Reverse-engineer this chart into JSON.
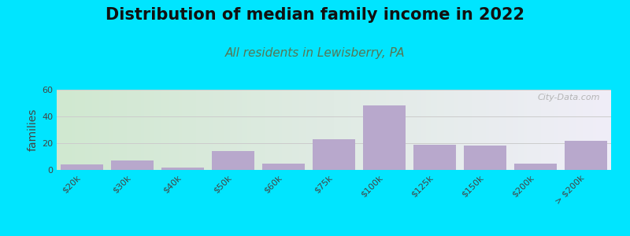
{
  "title": "Distribution of median family income in 2022",
  "subtitle": "All residents in Lewisberry, PA",
  "ylabel": "families",
  "categories": [
    "$20k",
    "$30k",
    "$40k",
    "$50k",
    "$60k",
    "$75k",
    "$100k",
    "$125k",
    "$150k",
    "$200k",
    "> $200k"
  ],
  "values": [
    4,
    7,
    2,
    14,
    5,
    23,
    48,
    19,
    18,
    5,
    22
  ],
  "bar_color": "#b8a8cc",
  "background_outer": "#00e5ff",
  "background_plot_topleft": "#d0e8d0",
  "background_plot_topright": "#f0eef8",
  "background_plot_bottomleft": "#e8f4e8",
  "background_plot_bottomright": "#faf8fc",
  "ylim": [
    0,
    60
  ],
  "yticks": [
    0,
    20,
    40,
    60
  ],
  "grid_color": "#cccccc",
  "title_fontsize": 15,
  "subtitle_fontsize": 11,
  "ylabel_fontsize": 10,
  "tick_fontsize": 8,
  "watermark_text": "City-Data.com",
  "subtitle_color": "#557755"
}
